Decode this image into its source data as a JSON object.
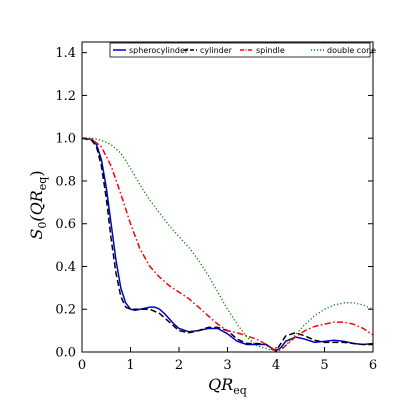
{
  "chart_data": {
    "type": "line",
    "xlabel": "QR",
    "xlabel_sub": "eq",
    "ylabel": "S",
    "ylabel_sub": "0",
    "ylabel_arg": "(QR",
    "ylabel_arg_sub": "eq",
    "ylabel_arg_close": ")",
    "xlim": [
      0,
      6
    ],
    "ylim": [
      0,
      1.45
    ],
    "xticks": [
      0,
      1,
      2,
      3,
      4,
      5,
      6
    ],
    "xtick_labels": [
      "0",
      "1",
      "2",
      "3",
      "4",
      "5",
      "6"
    ],
    "yticks": [
      0,
      0.2,
      0.4,
      0.6,
      0.8,
      1.0,
      1.2,
      1.4
    ],
    "ytick_labels": [
      "0.0",
      "0.2",
      "0.4",
      "0.6",
      "0.8",
      "1.0",
      "1.2",
      "1.4"
    ],
    "grid": false,
    "legend_position": "top",
    "series": [
      {
        "name": "spherocylinder",
        "color": "#0000cc",
        "style": "solid",
        "x": [
          0,
          0.2,
          0.3,
          0.4,
          0.5,
          0.6,
          0.7,
          0.8,
          0.9,
          1.0,
          1.1,
          1.2,
          1.3,
          1.4,
          1.5,
          1.6,
          1.7,
          1.8,
          1.9,
          2.0,
          2.2,
          2.4,
          2.6,
          2.8,
          3.0,
          3.2,
          3.4,
          3.6,
          3.8,
          3.9,
          4.0,
          4.1,
          4.2,
          4.4,
          4.6,
          4.8,
          5.0,
          5.2,
          5.4,
          5.6,
          5.8,
          6.0
        ],
        "values": [
          1.0,
          0.995,
          0.97,
          0.9,
          0.77,
          0.6,
          0.43,
          0.3,
          0.23,
          0.2,
          0.195,
          0.2,
          0.205,
          0.21,
          0.21,
          0.2,
          0.18,
          0.155,
          0.13,
          0.11,
          0.095,
          0.1,
          0.11,
          0.11,
          0.085,
          0.05,
          0.035,
          0.035,
          0.035,
          0.02,
          0.005,
          0.02,
          0.05,
          0.07,
          0.06,
          0.045,
          0.05,
          0.055,
          0.05,
          0.04,
          0.035,
          0.04
        ]
      },
      {
        "name": "cylinder",
        "color": "#000000",
        "style": "dashed",
        "x": [
          0,
          0.2,
          0.3,
          0.4,
          0.5,
          0.6,
          0.7,
          0.8,
          0.9,
          1.0,
          1.2,
          1.4,
          1.6,
          1.8,
          2.0,
          2.2,
          2.4,
          2.6,
          2.8,
          3.0,
          3.2,
          3.4,
          3.6,
          3.8,
          3.9,
          4.0,
          4.1,
          4.2,
          4.4,
          4.6,
          4.8,
          5.0,
          5.2,
          5.4,
          5.6,
          5.8,
          6.0
        ],
        "values": [
          1.0,
          0.99,
          0.96,
          0.87,
          0.72,
          0.53,
          0.37,
          0.26,
          0.21,
          0.2,
          0.2,
          0.2,
          0.18,
          0.14,
          0.1,
          0.09,
          0.1,
          0.115,
          0.115,
          0.1,
          0.06,
          0.04,
          0.04,
          0.035,
          0.015,
          0.005,
          0.04,
          0.075,
          0.09,
          0.075,
          0.055,
          0.045,
          0.045,
          0.045,
          0.04,
          0.035,
          0.035
        ]
      },
      {
        "name": "spindle",
        "color": "#ff0000",
        "style": "dashdot",
        "x": [
          0,
          0.2,
          0.4,
          0.6,
          0.8,
          1.0,
          1.2,
          1.4,
          1.6,
          1.8,
          2.0,
          2.2,
          2.4,
          2.6,
          2.8,
          3.0,
          3.2,
          3.4,
          3.6,
          3.8,
          3.9,
          4.0,
          4.1,
          4.2,
          4.4,
          4.6,
          4.8,
          5.0,
          5.2,
          5.4,
          5.6,
          5.8,
          6.0
        ],
        "values": [
          1.0,
          0.995,
          0.96,
          0.87,
          0.74,
          0.6,
          0.48,
          0.4,
          0.35,
          0.31,
          0.28,
          0.25,
          0.21,
          0.17,
          0.13,
          0.1,
          0.09,
          0.075,
          0.06,
          0.035,
          0.02,
          0.005,
          0.01,
          0.03,
          0.07,
          0.1,
          0.12,
          0.13,
          0.14,
          0.14,
          0.13,
          0.11,
          0.08
        ]
      },
      {
        "name": "double cone",
        "color": "#008000",
        "style": "dotted",
        "x": [
          0,
          0.2,
          0.4,
          0.6,
          0.8,
          1.0,
          1.2,
          1.4,
          1.6,
          1.8,
          2.0,
          2.2,
          2.4,
          2.6,
          2.8,
          3.0,
          3.2,
          3.4,
          3.6,
          3.8,
          3.9,
          4.0,
          4.1,
          4.2,
          4.4,
          4.6,
          4.8,
          5.0,
          5.2,
          5.4,
          5.6,
          5.8,
          6.0
        ],
        "values": [
          1.0,
          1.0,
          0.99,
          0.97,
          0.93,
          0.86,
          0.78,
          0.71,
          0.65,
          0.59,
          0.54,
          0.49,
          0.43,
          0.36,
          0.28,
          0.2,
          0.13,
          0.07,
          0.03,
          0.015,
          0.01,
          0.01,
          0.015,
          0.03,
          0.08,
          0.13,
          0.17,
          0.2,
          0.22,
          0.23,
          0.23,
          0.22,
          0.2
        ]
      }
    ]
  }
}
